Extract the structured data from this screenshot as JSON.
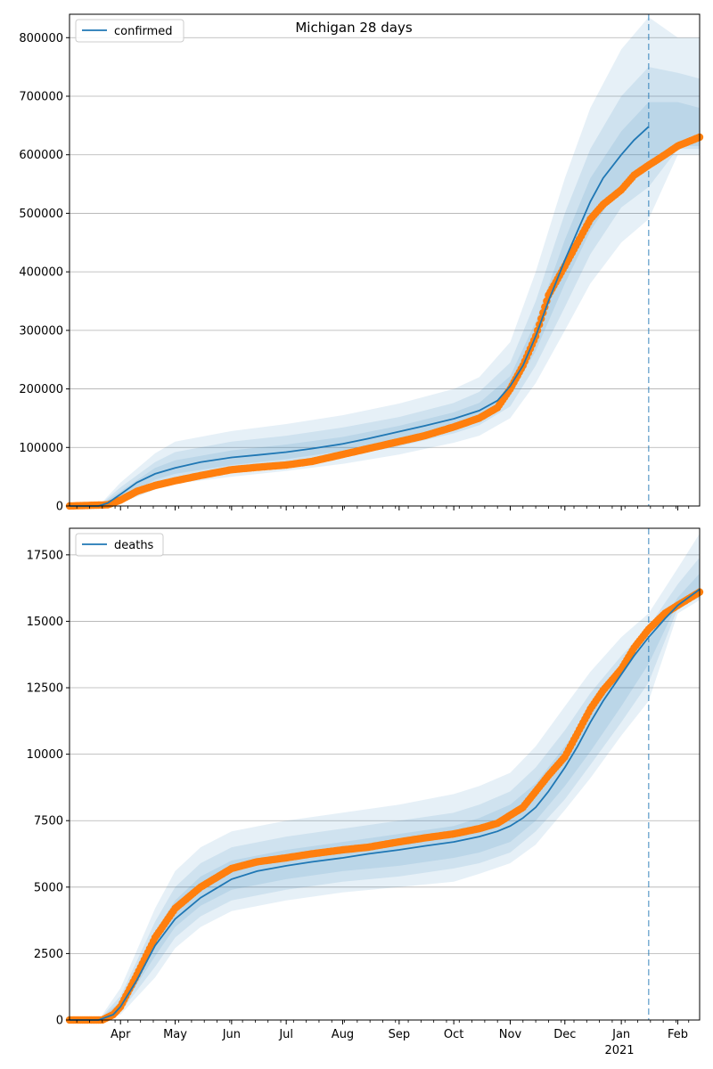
{
  "title": "Michigan 28 days",
  "colors": {
    "model": "#1f77b4",
    "observed": "#ff7f0e",
    "band": "#1f77b4",
    "grid": "#b0b0b0"
  },
  "xaxis": {
    "month_labels": [
      "Apr",
      "May",
      "Jun",
      "Jul",
      "Aug",
      "Sep",
      "Oct",
      "Nov",
      "Dec",
      "Jan",
      "Feb"
    ],
    "month_dates": [
      "2020-04-01",
      "2020-05-01",
      "2020-06-01",
      "2020-07-01",
      "2020-08-01",
      "2020-09-01",
      "2020-10-01",
      "2020-11-01",
      "2020-12-01",
      "2021-01-01",
      "2021-02-01"
    ],
    "year_label": "2021",
    "range": [
      "2020-03-04",
      "2021-02-13"
    ],
    "forecast_line_date": "2021-01-16"
  },
  "chart_data": [
    {
      "type": "line",
      "legend": "confirmed",
      "legend_position": "top-left",
      "grid": "horizontal",
      "ylim": [
        0,
        840000
      ],
      "yticks": [
        0,
        100000,
        200000,
        300000,
        400000,
        500000,
        600000,
        700000,
        800000
      ],
      "model": {
        "dates": [
          "2020-03-04",
          "2020-03-20",
          "2020-03-25",
          "2020-04-01",
          "2020-04-10",
          "2020-04-20",
          "2020-05-01",
          "2020-05-15",
          "2020-06-01",
          "2020-06-15",
          "2020-07-01",
          "2020-07-15",
          "2020-08-01",
          "2020-08-15",
          "2020-09-01",
          "2020-09-15",
          "2020-10-01",
          "2020-10-15",
          "2020-10-25",
          "2020-11-01",
          "2020-11-08",
          "2020-11-15",
          "2020-11-22",
          "2020-12-01",
          "2020-12-08",
          "2020-12-15",
          "2020-12-22",
          "2021-01-01",
          "2021-01-08",
          "2021-01-16"
        ],
        "values": [
          0,
          0,
          5000,
          20000,
          40000,
          55000,
          65000,
          75000,
          83000,
          87000,
          92000,
          98000,
          106000,
          115000,
          127000,
          137000,
          149000,
          163000,
          180000,
          205000,
          240000,
          290000,
          350000,
          420000,
          470000,
          520000,
          560000,
          600000,
          625000,
          648000
        ]
      },
      "bands": [
        {
          "name": "outer",
          "dates": [
            "2020-03-04",
            "2020-03-20",
            "2020-04-01",
            "2020-04-20",
            "2020-05-01",
            "2020-06-01",
            "2020-07-01",
            "2020-08-01",
            "2020-09-01",
            "2020-10-01",
            "2020-10-15",
            "2020-11-01",
            "2020-11-15",
            "2020-12-01",
            "2020-12-15",
            "2021-01-01",
            "2021-01-16",
            "2021-02-01",
            "2021-02-13"
          ],
          "upper": [
            0,
            0,
            40000,
            90000,
            110000,
            128000,
            140000,
            155000,
            175000,
            200000,
            220000,
            280000,
            400000,
            560000,
            680000,
            780000,
            835000,
            800000,
            800000
          ],
          "lower": [
            0,
            0,
            5000,
            28000,
            38000,
            50000,
            60000,
            72000,
            88000,
            108000,
            120000,
            150000,
            210000,
            300000,
            380000,
            450000,
            490000,
            600000,
            600000
          ]
        },
        {
          "name": "middle",
          "dates": [
            "2020-03-04",
            "2020-03-20",
            "2020-04-01",
            "2020-04-20",
            "2020-05-01",
            "2020-06-01",
            "2020-07-01",
            "2020-08-01",
            "2020-09-01",
            "2020-10-01",
            "2020-10-15",
            "2020-11-01",
            "2020-11-15",
            "2020-12-01",
            "2020-12-15",
            "2021-01-01",
            "2021-01-16",
            "2021-02-01",
            "2021-02-13"
          ],
          "upper": [
            0,
            0,
            32000,
            75000,
            92000,
            110000,
            120000,
            134000,
            152000,
            176000,
            195000,
            245000,
            350000,
            500000,
            610000,
            700000,
            750000,
            740000,
            730000
          ],
          "lower": [
            0,
            0,
            8000,
            35000,
            46000,
            60000,
            72000,
            84000,
            102000,
            124000,
            138000,
            170000,
            240000,
            340000,
            430000,
            510000,
            545000,
            610000,
            610000
          ]
        },
        {
          "name": "inner",
          "dates": [
            "2020-03-04",
            "2020-03-20",
            "2020-04-01",
            "2020-04-20",
            "2020-05-01",
            "2020-06-01",
            "2020-07-01",
            "2020-08-01",
            "2020-09-01",
            "2020-10-01",
            "2020-10-15",
            "2020-11-01",
            "2020-11-15",
            "2020-12-01",
            "2020-12-15",
            "2021-01-01",
            "2021-01-16",
            "2021-02-01",
            "2021-02-13"
          ],
          "upper": [
            0,
            0,
            25000,
            65000,
            78000,
            95000,
            105000,
            118000,
            137000,
            160000,
            176000,
            222000,
            315000,
            455000,
            560000,
            640000,
            690000,
            690000,
            680000
          ],
          "lower": [
            0,
            0,
            12000,
            45000,
            55000,
            70000,
            80000,
            94000,
            115000,
            136000,
            150000,
            188000,
            265000,
            380000,
            470000,
            550000,
            590000,
            615000,
            615000
          ]
        }
      ],
      "observed": {
        "dates": [
          "2020-03-04",
          "2020-03-25",
          "2020-04-01",
          "2020-04-10",
          "2020-04-20",
          "2020-05-01",
          "2020-05-15",
          "2020-06-01",
          "2020-06-15",
          "2020-07-01",
          "2020-07-15",
          "2020-08-01",
          "2020-08-15",
          "2020-09-01",
          "2020-09-15",
          "2020-10-01",
          "2020-10-15",
          "2020-10-25",
          "2020-11-01",
          "2020-11-08",
          "2020-11-15",
          "2020-11-22",
          "2020-12-01",
          "2020-12-08",
          "2020-12-15",
          "2020-12-22",
          "2021-01-01",
          "2021-01-08",
          "2021-01-16",
          "2021-01-25",
          "2021-02-01",
          "2021-02-13"
        ],
        "values": [
          0,
          2000,
          10000,
          25000,
          35000,
          43000,
          52000,
          62000,
          66000,
          70000,
          76000,
          88000,
          98000,
          110000,
          120000,
          135000,
          150000,
          168000,
          200000,
          240000,
          290000,
          360000,
          410000,
          450000,
          490000,
          515000,
          540000,
          565000,
          582000,
          600000,
          615000,
          630000
        ]
      }
    },
    {
      "type": "line",
      "legend": "deaths",
      "legend_position": "top-left",
      "grid": "horizontal",
      "ylim": [
        0,
        18500
      ],
      "yticks": [
        0,
        2500,
        5000,
        7500,
        10000,
        12500,
        15000,
        17500
      ],
      "model": {
        "dates": [
          "2020-03-04",
          "2020-03-20",
          "2020-03-28",
          "2020-04-01",
          "2020-04-10",
          "2020-04-20",
          "2020-05-01",
          "2020-05-15",
          "2020-06-01",
          "2020-06-15",
          "2020-07-01",
          "2020-07-15",
          "2020-08-01",
          "2020-08-15",
          "2020-09-01",
          "2020-09-15",
          "2020-10-01",
          "2020-10-15",
          "2020-10-25",
          "2020-11-01",
          "2020-11-08",
          "2020-11-15",
          "2020-11-22",
          "2020-12-01",
          "2020-12-08",
          "2020-12-15",
          "2020-12-22",
          "2021-01-01",
          "2021-01-08",
          "2021-01-16",
          "2021-01-25",
          "2021-02-01",
          "2021-02-13"
        ],
        "values": [
          0,
          0,
          200,
          500,
          1500,
          2800,
          3800,
          4600,
          5300,
          5600,
          5800,
          5950,
          6100,
          6250,
          6400,
          6550,
          6700,
          6900,
          7100,
          7300,
          7600,
          8000,
          8600,
          9500,
          10300,
          11200,
          12000,
          13000,
          13700,
          14400,
          15100,
          15600,
          16200
        ]
      },
      "bands": [
        {
          "name": "outer",
          "dates": [
            "2020-03-04",
            "2020-03-20",
            "2020-04-01",
            "2020-04-20",
            "2020-05-01",
            "2020-05-15",
            "2020-06-01",
            "2020-07-01",
            "2020-08-01",
            "2020-09-01",
            "2020-10-01",
            "2020-10-15",
            "2020-11-01",
            "2020-11-15",
            "2020-12-01",
            "2020-12-15",
            "2021-01-01",
            "2021-01-16",
            "2021-02-01",
            "2021-02-13"
          ],
          "upper": [
            0,
            0,
            1200,
            4200,
            5600,
            6500,
            7100,
            7500,
            7800,
            8100,
            8500,
            8800,
            9300,
            10300,
            11800,
            13100,
            14400,
            15300,
            17000,
            18300
          ],
          "lower": [
            0,
            0,
            200,
            1600,
            2700,
            3500,
            4100,
            4500,
            4800,
            5000,
            5200,
            5500,
            5900,
            6600,
            7900,
            9100,
            10700,
            12000,
            15300,
            15800
          ]
        },
        {
          "name": "middle",
          "dates": [
            "2020-03-04",
            "2020-03-20",
            "2020-04-01",
            "2020-04-20",
            "2020-05-01",
            "2020-05-15",
            "2020-06-01",
            "2020-07-01",
            "2020-08-01",
            "2020-09-01",
            "2020-10-01",
            "2020-10-15",
            "2020-11-01",
            "2020-11-15",
            "2020-12-01",
            "2020-12-15",
            "2021-01-01",
            "2021-01-16",
            "2021-02-01",
            "2021-02-13"
          ],
          "upper": [
            0,
            0,
            900,
            3700,
            5000,
            5900,
            6500,
            6900,
            7200,
            7500,
            7800,
            8100,
            8600,
            9500,
            10900,
            12300,
            13700,
            14800,
            16400,
            17400
          ],
          "lower": [
            0,
            0,
            300,
            2000,
            3100,
            3900,
            4500,
            4900,
            5200,
            5400,
            5700,
            5900,
            6300,
            7100,
            8300,
            9600,
            11200,
            12700,
            15500,
            15900
          ]
        },
        {
          "name": "inner",
          "dates": [
            "2020-03-04",
            "2020-03-20",
            "2020-04-01",
            "2020-04-20",
            "2020-05-01",
            "2020-05-15",
            "2020-06-01",
            "2020-07-01",
            "2020-08-01",
            "2020-09-01",
            "2020-10-01",
            "2020-10-15",
            "2020-11-01",
            "2020-11-15",
            "2020-12-01",
            "2020-12-15",
            "2021-01-01",
            "2021-01-16",
            "2021-02-01",
            "2021-02-13"
          ],
          "upper": [
            0,
            0,
            700,
            3300,
            4500,
            5400,
            6000,
            6400,
            6700,
            7000,
            7300,
            7600,
            8100,
            8900,
            10300,
            11700,
            13200,
            14300,
            15900,
            16800
          ],
          "lower": [
            0,
            0,
            400,
            2400,
            3500,
            4300,
            4900,
            5300,
            5600,
            5800,
            6100,
            6300,
            6700,
            7500,
            8800,
            10100,
            11800,
            13400,
            15700,
            16000
          ]
        }
      ],
      "observed": {
        "dates": [
          "2020-03-04",
          "2020-03-22",
          "2020-03-28",
          "2020-04-01",
          "2020-04-10",
          "2020-04-20",
          "2020-05-01",
          "2020-05-15",
          "2020-06-01",
          "2020-06-15",
          "2020-07-01",
          "2020-07-15",
          "2020-08-01",
          "2020-08-15",
          "2020-09-01",
          "2020-09-15",
          "2020-10-01",
          "2020-10-15",
          "2020-10-25",
          "2020-11-01",
          "2020-11-08",
          "2020-11-15",
          "2020-11-22",
          "2020-12-01",
          "2020-12-08",
          "2020-12-15",
          "2020-12-22",
          "2021-01-01",
          "2021-01-08",
          "2021-01-16",
          "2021-01-25",
          "2021-02-01",
          "2021-02-13"
        ],
        "values": [
          0,
          0,
          200,
          500,
          1700,
          3100,
          4200,
          5000,
          5700,
          5950,
          6100,
          6250,
          6400,
          6500,
          6700,
          6850,
          7000,
          7200,
          7400,
          7700,
          8000,
          8600,
          9200,
          9900,
          10800,
          11700,
          12400,
          13200,
          14000,
          14700,
          15300,
          15600,
          16100
        ]
      }
    }
  ]
}
